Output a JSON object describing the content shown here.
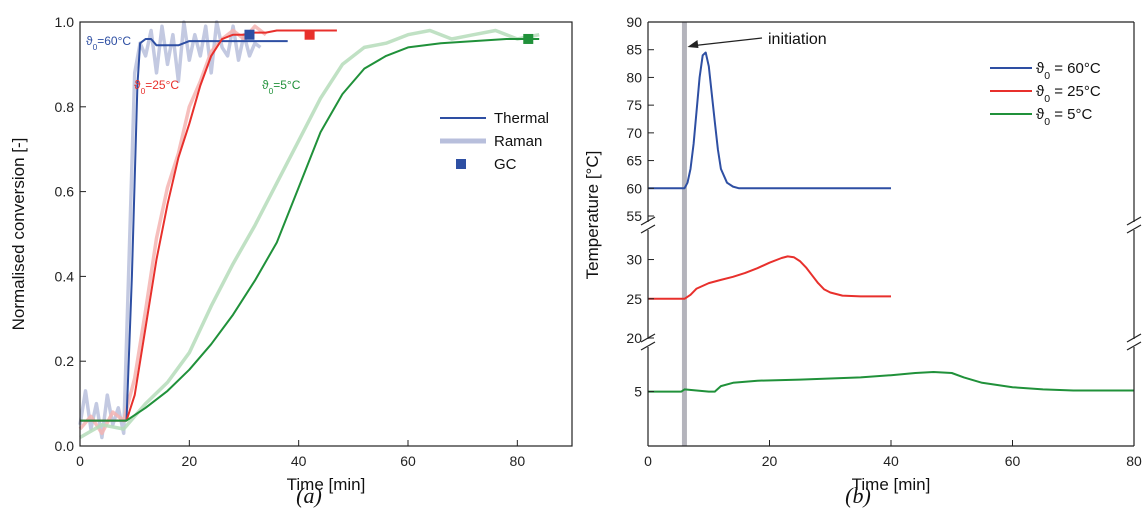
{
  "colors": {
    "blue": "#2e4fa3",
    "blue_raman": "#b8bfdc",
    "red": "#e8302c",
    "red_raman": "#f4b4b2",
    "green": "#20913a",
    "green_raman": "#b5dcba",
    "gray_bar": "#b4b4bc",
    "axis": "#222222"
  },
  "captions": {
    "a": "(a)",
    "b": "(b)"
  },
  "chart_data": [
    {
      "type": "line",
      "panel": "a",
      "xlabel": "Time [min]",
      "ylabel": "Normalised conversion [-]",
      "xlim": [
        0,
        90
      ],
      "ylim": [
        0,
        1.0
      ],
      "xticks": [
        0,
        20,
        40,
        60,
        80
      ],
      "xtick_labels": [
        "0",
        "20",
        "40",
        "60",
        "80"
      ],
      "yticks": [
        0,
        0.2,
        0.4,
        0.6,
        0.8,
        1.0
      ],
      "ytick_labels": [
        "0.0",
        "0.2",
        "0.4",
        "0.6",
        "0.8",
        "1.0"
      ],
      "grid": false,
      "legend": {
        "placement": "right-middle",
        "entries": [
          {
            "label": "Thermal",
            "style": "line"
          },
          {
            "label": "Raman",
            "style": "thick-light-line"
          },
          {
            "label": "GC",
            "style": "square-marker"
          }
        ]
      },
      "series": [
        {
          "annotation": "ϑ0=60°C",
          "color_key": "blue",
          "thermal": {
            "x": [
              0,
              8.5,
              9.5,
              10.5,
              11,
              12,
              13,
              14,
              16,
              18,
              20,
              25,
              30,
              38
            ],
            "y": [
              0.06,
              0.06,
              0.4,
              0.85,
              0.95,
              0.96,
              0.96,
              0.945,
              0.945,
              0.945,
              0.955,
              0.955,
              0.955,
              0.955
            ]
          },
          "raman": {
            "x": [
              0,
              1,
              2,
              3,
              4,
              5,
              6,
              7,
              8,
              9,
              10,
              11,
              12,
              13,
              14,
              15,
              16,
              17,
              18,
              19,
              20,
              21,
              22,
              23,
              24,
              25,
              26,
              27,
              28,
              29,
              30,
              31,
              32,
              33
            ],
            "y": [
              0.05,
              0.13,
              0.04,
              0.1,
              0.02,
              0.12,
              0.05,
              0.09,
              0.03,
              0.45,
              0.88,
              0.95,
              0.92,
              0.98,
              0.88,
              0.99,
              0.9,
              0.97,
              0.86,
              1.0,
              0.91,
              0.97,
              0.92,
              0.99,
              0.88,
              1.0,
              0.94,
              0.92,
              0.99,
              0.91,
              0.97,
              0.92,
              0.95,
              0.94
            ]
          },
          "gc": {
            "x": [
              31
            ],
            "y": [
              0.97
            ]
          }
        },
        {
          "annotation": "ϑ0=25°C",
          "color_key": "red",
          "thermal": {
            "x": [
              0,
              8.5,
              10,
              12,
              14,
              16,
              18,
              20,
              22,
              24,
              26,
              28,
              30,
              32,
              34,
              36,
              40,
              47
            ],
            "y": [
              0.06,
              0.06,
              0.12,
              0.28,
              0.44,
              0.57,
              0.68,
              0.76,
              0.85,
              0.92,
              0.96,
              0.97,
              0.97,
              0.975,
              0.975,
              0.98,
              0.98,
              0.98
            ]
          },
          "raman": {
            "x": [
              0,
              2,
              4,
              6,
              8,
              10,
              12,
              14,
              16,
              18,
              20,
              22,
              24,
              26,
              28,
              30,
              32,
              34
            ],
            "y": [
              0.04,
              0.07,
              0.03,
              0.08,
              0.06,
              0.16,
              0.32,
              0.49,
              0.61,
              0.69,
              0.8,
              0.86,
              0.93,
              0.96,
              0.98,
              0.96,
              0.99,
              0.97
            ]
          },
          "gc": {
            "x": [
              42
            ],
            "y": [
              0.97
            ]
          }
        },
        {
          "annotation": "ϑ0=5°C",
          "color_key": "green",
          "thermal": {
            "x": [
              0,
              8.5,
              12,
              16,
              20,
              24,
              28,
              32,
              36,
              40,
              44,
              48,
              52,
              56,
              60,
              66,
              72,
              78,
              84
            ],
            "y": [
              0.06,
              0.06,
              0.09,
              0.13,
              0.18,
              0.24,
              0.31,
              0.39,
              0.48,
              0.61,
              0.74,
              0.83,
              0.89,
              0.92,
              0.94,
              0.95,
              0.955,
              0.96,
              0.96
            ]
          },
          "raman": {
            "x": [
              0,
              4,
              8,
              12,
              16,
              20,
              24,
              28,
              32,
              36,
              40,
              44,
              48,
              52,
              56,
              60,
              64,
              68,
              72,
              76,
              80,
              84
            ],
            "y": [
              0.02,
              0.05,
              0.04,
              0.1,
              0.15,
              0.22,
              0.33,
              0.43,
              0.52,
              0.62,
              0.72,
              0.82,
              0.9,
              0.94,
              0.95,
              0.97,
              0.98,
              0.96,
              0.97,
              0.98,
              0.96,
              0.97
            ]
          },
          "gc": {
            "x": [
              82
            ],
            "y": [
              0.96
            ]
          }
        }
      ]
    },
    {
      "type": "line",
      "panel": "b",
      "xlabel": "Time [min]",
      "ylabel": "Temperature [°C]",
      "xlim": [
        0,
        80
      ],
      "xticks": [
        0,
        20,
        40,
        60,
        80
      ],
      "xtick_labels": [
        "0",
        "20",
        "40",
        "60",
        "80"
      ],
      "broken_y_axis": true,
      "y_segments": [
        {
          "ylim": [
            55,
            90
          ],
          "ticks": [
            55,
            60,
            65,
            70,
            75,
            80,
            85,
            90
          ]
        },
        {
          "ylim": [
            20,
            33
          ],
          "ticks": [
            20,
            25,
            30
          ]
        },
        {
          "ylim": [
            0,
            9
          ],
          "ticks": [
            5
          ]
        }
      ],
      "grid": false,
      "initiation": {
        "label": "initiation",
        "x": 6
      },
      "legend": {
        "placement": "top-right"
      },
      "series": [
        {
          "name_base": "ϑ",
          "name_sub": "0",
          "name_rest": " = 60°C",
          "color_key": "blue",
          "segment": 0,
          "x": [
            0,
            5.5,
            6,
            6.5,
            7,
            7.5,
            8,
            8.5,
            9,
            9.5,
            10,
            10.5,
            11,
            11.5,
            12,
            13,
            14,
            15,
            17,
            20,
            30,
            40
          ],
          "y": [
            60,
            60,
            60,
            61,
            63.5,
            68,
            74,
            80,
            84,
            84.5,
            82,
            77,
            72,
            67,
            63.5,
            61,
            60.3,
            60,
            60,
            60,
            60,
            60
          ]
        },
        {
          "name_base": "ϑ",
          "name_sub": "0",
          "name_rest": " = 25°C",
          "color_key": "red",
          "segment": 1,
          "x": [
            0,
            5.5,
            6,
            7,
            8,
            10,
            12,
            14,
            16,
            18,
            20,
            22,
            23,
            24,
            25,
            26,
            27,
            28,
            29,
            30,
            32,
            35,
            40
          ],
          "y": [
            25,
            25,
            25,
            25.5,
            26.3,
            27.0,
            27.4,
            27.8,
            28.3,
            28.9,
            29.6,
            30.2,
            30.4,
            30.3,
            29.8,
            29.0,
            28.0,
            27.0,
            26.2,
            25.8,
            25.4,
            25.3,
            25.3
          ]
        },
        {
          "name_base": "ϑ",
          "name_sub": "0",
          "name_rest": " = 5°C",
          "color_key": "green",
          "segment": 2,
          "x": [
            0,
            5.5,
            6,
            8,
            10,
            11,
            12,
            14,
            18,
            25,
            30,
            35,
            40,
            44,
            47,
            50,
            52,
            55,
            60,
            65,
            70,
            80
          ],
          "y": [
            5,
            5,
            5.2,
            5.1,
            5.0,
            5.0,
            5.5,
            5.8,
            6.0,
            6.1,
            6.2,
            6.3,
            6.5,
            6.7,
            6.8,
            6.7,
            6.3,
            5.8,
            5.4,
            5.2,
            5.1,
            5.1
          ]
        }
      ]
    }
  ]
}
